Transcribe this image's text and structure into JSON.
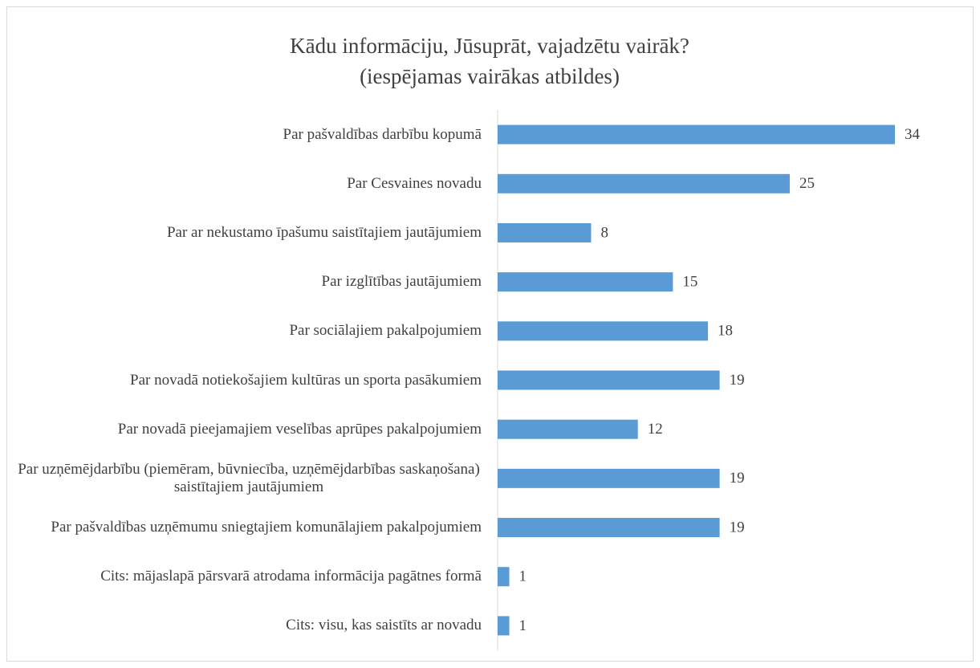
{
  "chart_data": {
    "type": "bar",
    "orientation": "horizontal",
    "title": [
      "Kādu informāciju, Jūsuprāt, vajadzētu vairāk?",
      "(iespējamas vairākas atbildes)"
    ],
    "categories": [
      "Par pašvaldības darbību kopumā",
      "Par Cesvaines novadu",
      "Par ar nekustamo īpašumu saistītajiem jautājumiem",
      "Par izglītības jautājumiem",
      "Par sociālajiem pakalpojumiem",
      "Par novadā notiekošajiem kultūras un sporta pasākumiem",
      "Par novadā pieejamajiem veselības aprūpes pakalpojumiem",
      "Par uzņēmējdarbību (piemēram, būvniecība, uzņēmējdarbības saskaņošana) saistītajiem jautājumiem",
      "Par pašvaldības uzņēmumu sniegtajiem komunālajiem pakalpojumiem",
      "Cits: mājaslapā pārsvarā atrodama informācija pagātnes formā",
      "Cits: visu, kas saistīts ar novadu"
    ],
    "values": [
      34,
      25,
      8,
      15,
      18,
      19,
      12,
      19,
      19,
      1,
      1
    ],
    "color": "#5b9bd5",
    "xlim": [
      0,
      35
    ]
  }
}
